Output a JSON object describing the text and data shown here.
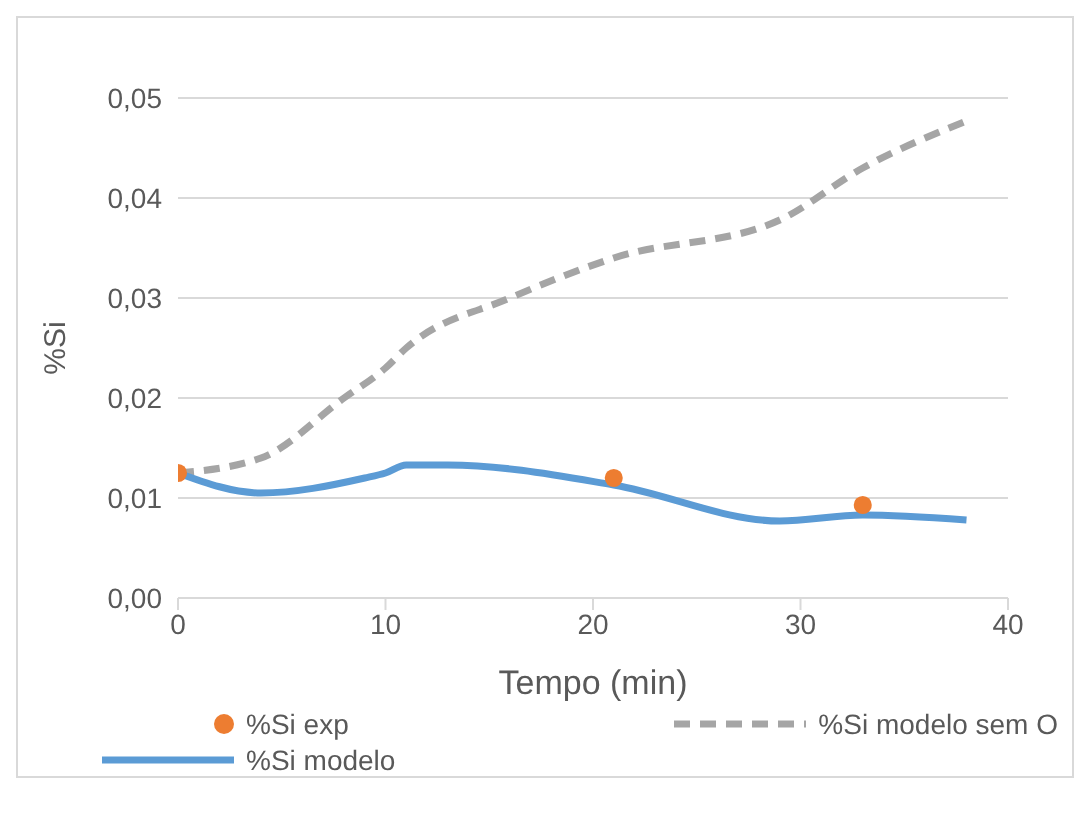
{
  "chart_data": {
    "type": "line",
    "xlabel": "Tempo (min)",
    "ylabel": "%Si",
    "xlim": [
      0,
      40
    ],
    "xticks": [
      0,
      10,
      20,
      30,
      40
    ],
    "ylim": [
      0,
      0.05
    ],
    "yticks": [
      {
        "value": 0,
        "label": "0,00"
      },
      {
        "value": 0.01,
        "label": "0,01"
      },
      {
        "value": 0.02,
        "label": "0,02"
      },
      {
        "value": 0.03,
        "label": "0,03"
      },
      {
        "value": 0.04,
        "label": "0,04"
      },
      {
        "value": 0.05,
        "label": "0,05"
      }
    ],
    "grid": "y",
    "legend": "bottom",
    "series": [
      {
        "name": "%Si exp",
        "type": "scatter",
        "color": "#ed7d31",
        "marker": "circle",
        "x": [
          0,
          21,
          33
        ],
        "values": [
          0.0125,
          0.012,
          0.0093
        ]
      },
      {
        "name": "%Si modelo sem O",
        "color": "#a5a5a5",
        "line_style": "dashed",
        "marker": "none",
        "x": [
          0,
          4,
          8,
          10,
          11,
          16,
          21,
          29,
          33,
          38
        ],
        "values": [
          0.0125,
          0.014,
          0.02,
          0.023,
          0.025,
          0.03,
          0.034,
          0.0378,
          0.043,
          0.0477
        ]
      },
      {
        "name": "%Si modelo",
        "color": "#5b9bd5",
        "line_style": "solid",
        "marker": "none",
        "x": [
          0,
          4,
          9,
          10,
          11,
          13,
          21,
          29,
          33,
          38
        ],
        "values": [
          0.0125,
          0.0105,
          0.012,
          0.0125,
          0.0133,
          0.0133,
          0.0113,
          0.0077,
          0.0083,
          0.0078
        ]
      }
    ]
  }
}
